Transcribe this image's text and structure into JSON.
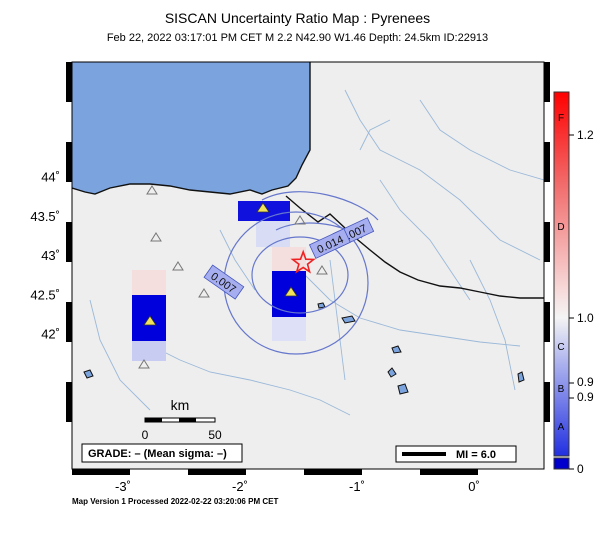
{
  "title": "SISCAN Uncertainty Ratio Map : Pyrenees",
  "subtitle": "Feb 22, 2022 03:17:01 PM CET   M 2.2   N42.90 W1.46   Depth: 24.5km   ID:22913",
  "axes": {
    "lon_ticks": [
      {
        "value": -3,
        "label": "-3˚"
      },
      {
        "value": -2,
        "label": "-2˚"
      },
      {
        "value": -1,
        "label": "-1˚"
      },
      {
        "value": 0,
        "label": "0˚"
      }
    ],
    "lat_ticks": [
      {
        "value": 44,
        "label": "44˚"
      },
      {
        "value": 43.5,
        "label": "43.5˚"
      },
      {
        "value": 43,
        "label": "43˚"
      },
      {
        "value": 42.5,
        "label": "42.5˚"
      },
      {
        "value": 42,
        "label": "42˚"
      }
    ]
  },
  "contour_labels": [
    {
      "text": "0.007",
      "lon": -1.03,
      "lat": 43.28,
      "angle": -25
    },
    {
      "text": "0.014",
      "lon": -1.23,
      "lat": 43.14,
      "angle": -25
    },
    {
      "text": "0.007",
      "lon": -2.14,
      "lat": 42.65,
      "angle": 35
    }
  ],
  "scale_bar": {
    "title": "km",
    "start": "0",
    "end": "50"
  },
  "grade_box": "GRADE: – (Mean sigma: –)",
  "mi_legend": "MI = 6.0",
  "colorbar": {
    "grade_labels": [
      "F",
      "D",
      "C",
      "B",
      "A"
    ],
    "value_labels": [
      "1.2",
      "1.0",
      "0.9",
      "0.9",
      "0"
    ]
  },
  "epicenter": {
    "lon": -1.46,
    "lat": 42.9
  },
  "footer": "Map Version 1 Processed 2022-02-22 03:20:06 PM CET",
  "colors": {
    "sea": "#7ba4de",
    "land": "#eeeeee",
    "contour": "#6677cc",
    "river": "#9ab8d9",
    "cell_dark": "#0000dd",
    "star": "#ee2222"
  }
}
